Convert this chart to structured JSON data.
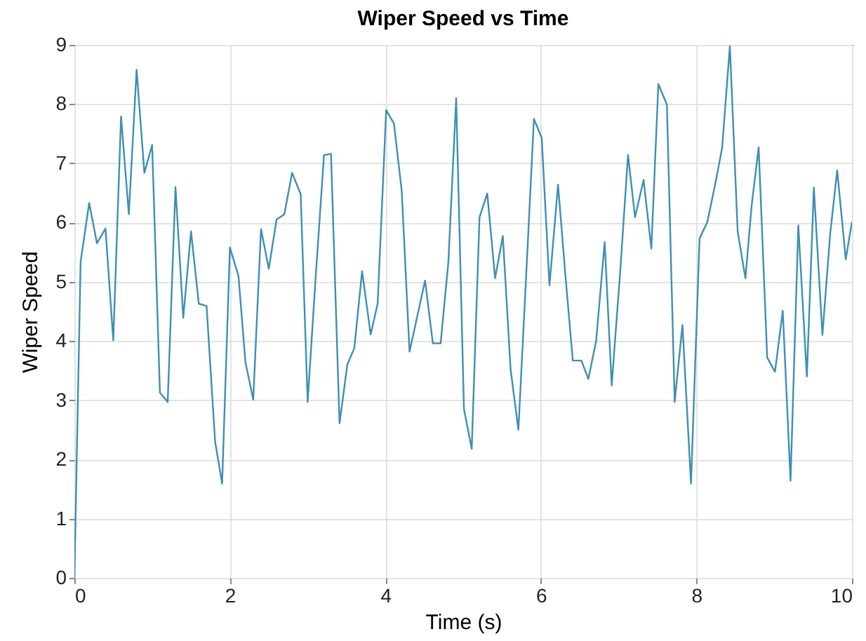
{
  "chart_data": {
    "type": "line",
    "title": "Wiper Speed vs Time",
    "xlabel": "Time (s)",
    "ylabel": "Wiper Speed",
    "x": [
      0,
      0.08,
      0.19,
      0.29,
      0.4,
      0.5,
      0.6,
      0.7,
      0.8,
      0.9,
      1.0,
      1.1,
      1.2,
      1.3,
      1.4,
      1.5,
      1.6,
      1.7,
      1.81,
      1.9,
      2.0,
      2.11,
      2.2,
      2.3,
      2.4,
      2.5,
      2.6,
      2.7,
      2.8,
      2.91,
      3.0,
      3.1,
      3.21,
      3.3,
      3.41,
      3.51,
      3.6,
      3.7,
      3.81,
      3.9,
      4.01,
      4.11,
      4.21,
      4.31,
      4.41,
      4.51,
      4.61,
      4.71,
      4.81,
      4.91,
      5.01,
      5.11,
      5.21,
      5.31,
      5.41,
      5.51,
      5.61,
      5.71,
      5.81,
      5.91,
      6.01,
      6.11,
      6.22,
      6.31,
      6.41,
      6.52,
      6.61,
      6.71,
      6.82,
      6.91,
      7.02,
      7.12,
      7.21,
      7.32,
      7.42,
      7.51,
      7.62,
      7.72,
      7.82,
      7.93,
      8.04,
      8.14,
      8.24,
      8.33,
      8.43,
      8.53,
      8.63,
      8.71,
      8.8,
      8.91,
      9.01,
      9.11,
      9.21,
      9.31,
      9.42,
      9.51,
      9.62,
      9.72,
      9.81,
      9.92,
      10.0
    ],
    "series": [
      {
        "color": "#3d8fb5",
        "values": [
          0,
          5.34,
          6.33,
          5.65,
          5.9,
          4.01,
          7.79,
          6.14,
          8.58,
          6.84,
          7.31,
          3.13,
          2.97,
          6.6,
          4.39,
          5.85,
          4.63,
          4.59,
          2.3,
          1.59,
          5.58,
          5.1,
          3.64,
          3.01,
          5.89,
          5.22,
          6.05,
          6.14,
          6.84,
          6.48,
          2.97,
          5.02,
          7.14,
          7.16,
          2.61,
          3.6,
          3.88,
          5.18,
          4.11,
          4.63,
          7.9,
          7.67,
          6.53,
          3.82,
          4.42,
          5.02,
          3.96,
          3.96,
          5.34,
          8.1,
          2.85,
          2.18,
          6.09,
          6.49,
          5.06,
          5.77,
          3.52,
          2.5,
          5.1,
          7.75,
          7.43,
          4.94,
          6.64,
          5.18,
          3.67,
          3.67,
          3.36,
          4.0,
          5.67,
          3.25,
          5.18,
          7.14,
          6.09,
          6.72,
          5.56,
          8.34,
          7.99,
          2.97,
          4.27,
          1.59,
          5.73,
          6.01,
          6.64,
          7.26,
          8.98,
          5.85,
          5.06,
          6.29,
          7.27,
          3.72,
          3.48,
          4.51,
          1.64,
          5.95,
          3.4,
          6.59,
          4.1,
          5.81,
          6.88,
          5.38,
          6.01
        ]
      }
    ],
    "xlim": [
      0,
      10
    ],
    "xticks": [
      0,
      2,
      4,
      6,
      8,
      10
    ],
    "ylim": [
      0,
      9
    ],
    "yticks": [
      0,
      1,
      2,
      3,
      4,
      5,
      6,
      7,
      8,
      9
    ],
    "grid": true,
    "marker": "none",
    "line_style": "solid"
  }
}
